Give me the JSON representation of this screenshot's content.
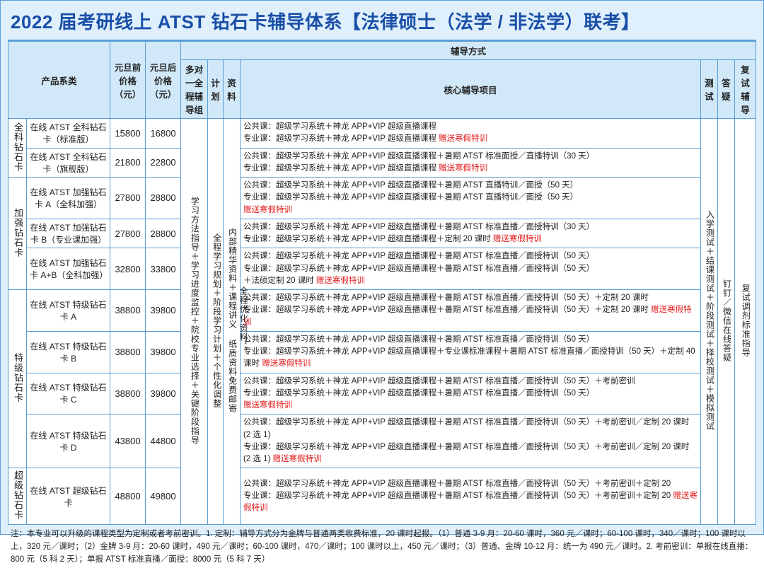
{
  "title": "2022 届考研线上 ATST 钻石卡辅导体系【法律硕士（法学 / 非法学）联考】",
  "headers": {
    "product": "产品系类",
    "price_before": "元旦前价格（元）",
    "price_after": "元旦后价格（元）",
    "method_group": "辅导方式",
    "m1": "多对一全程辅导组",
    "m2": "计划",
    "m3": "资料",
    "core": "核心辅导项目",
    "m4": "测试",
    "m5": "答疑",
    "m6": "复试辅导"
  },
  "cats": {
    "c1": "全科钻石卡",
    "c2": "加强钻石卡",
    "c3": "特级钻石卡",
    "c4": "超级钻石卡"
  },
  "vcol": {
    "m1": "学习方法指导＋学习进度监控＋院校专业选择＋关键阶段指导",
    "m2": "全程学习规划＋阶段学习计划＋个性化调整",
    "m3a": "全程优化资料：",
    "m3b": "内部精华资料＋课程讲义  纸质资料免费邮寄",
    "m4": "入学测试＋结课测试＋阶段测试＋择校测试＋模拟测试",
    "m5": "钉钉／微信在线答疑",
    "m6": "复试调剂标准指导"
  },
  "rows": [
    {
      "name": "在线 ATST 全科钻石卡（标准版）",
      "p1": "15800",
      "p2": "16800",
      "core": "公共课：超级学习系统＋神龙 APP+VIP 超级直播课程\n专业课：超级学习系统＋神龙 APP+VIP 超级直播课程 ",
      "bonus": "赠送寒假特训"
    },
    {
      "name": "在线 ATST 全科钻石卡（旗舰版）",
      "p1": "21800",
      "p2": "22800",
      "core": "公共课：超级学习系统＋神龙 APP+VIP 超级直播课程＋暑期 ATST 标准面授／直播特训（30 天）\n专业课：超级学习系统＋神龙 APP+VIP 超级直播课程 ",
      "bonus": "赠送寒假特训"
    },
    {
      "name": "在线 ATST 加强钻石卡 A（全科加强）",
      "p1": "27800",
      "p2": "28800",
      "core": "公共课：超级学习系统＋神龙 APP+VIP 超级直播课程＋暑期 ATST 直播特训／面授（50 天）\n专业课：超级学习系统＋神龙 APP+VIP 超级直播课程＋暑期 ATST 直播特训／面授（50 天）\n",
      "bonus": "赠送寒假特训"
    },
    {
      "name": "在线 ATST 加强钻石卡 B（专业课加强）",
      "p1": "27800",
      "p2": "28800",
      "core": "公共课：超级学习系统＋神龙 APP+VIP 超级直播课程＋暑期 ATST 标准直播／面授特训（30 天）\n专业课：超级学习系统＋神龙 APP+VIP 超级直播课程＋定制 20 课时 ",
      "bonus": "赠送寒假特训"
    },
    {
      "name": "在线 ATST 加强钻石卡 A+B（全科加强）",
      "p1": "32800",
      "p2": "33800",
      "core": "公共课：超级学习系统＋神龙 APP+VIP 超级直播课程＋暑期 ATST 标准直播／面授特训（50 天）\n专业课：超级学习系统＋神龙 APP+VIP 超级直播课程＋暑期 ATST 标准直播／面授特训（50 天）\n＋法硕定制 20 课时 ",
      "bonus": "赠送寒假特训"
    },
    {
      "name": "在线 ATST 特级钻石卡 A",
      "p1": "38800",
      "p2": "39800",
      "core": "公共课：超级学习系统＋神龙 APP+VIP 超级直播课程＋暑期 ATST 标准直播／面授特训（50 天）＋定制 20 课时\n专业课：超级学习系统＋神龙 APP+VIP 超级直播课程＋暑期 ATST 标准直播／面授特训（50 天）＋定制 20 课时 ",
      "bonus": "赠送寒假特训"
    },
    {
      "name": "在线 ATST 特级钻石卡 B",
      "p1": "38800",
      "p2": "39800",
      "core": "公共课：超级学习系统＋神龙 APP+VIP 超级直播课程＋暑期 ATST 标准直播／面授特训（50 天）\n专业课：超级学习系统＋神龙 APP+VIP 超级直播课程＋专业课标准课程＋暑期 ATST 标准直播／面授特训（50 天）＋定制 40 课时 ",
      "bonus": "赠送寒假特训"
    },
    {
      "name": "在线 ATST 特级钻石卡 C",
      "p1": "38800",
      "p2": "39800",
      "core": "公共课：超级学习系统＋神龙 APP+VIP 超级直播课程＋暑期 ATST 标准直播／面授特训（50 天）＋考前密训\n专业课：超级学习系统＋神龙 APP+VIP 超级直播课程＋暑期 ATST 标准直播／面授特训（50 天）\n",
      "bonus": "赠送寒假特训"
    },
    {
      "name": "在线 ATST 特级钻石卡 D",
      "p1": "43800",
      "p2": "44800",
      "core": "公共课：超级学习系统＋神龙 APP+VIP 超级直播课程＋暑期 ATST 标准直播／面授特训（50 天）＋考前密训／定制 20 课时 (2 选 1)\n专业课：超级学习系统＋神龙 APP+VIP 超级直播课程＋暑期 ATST 标准直播／面授特训（50 天）＋考前密训／定制 20 课时 (2 选 1) ",
      "bonus": "赠送寒假特训"
    },
    {
      "name": "在线 ATST 超级钻石卡",
      "p1": "48800",
      "p2": "49800",
      "core": "公共课：超级学习系统＋神龙 APP+VIP 超级直播课程＋暑期 ATST 标准直播／面授特训（50 天）＋考前密训＋定制 20\n专业课：超级学习系统＋神龙 APP+VIP 超级直播课程＋暑期 ATST 标准直播／面授特训（50 天）＋考前密训＋定制 20 ",
      "bonus": "赠送寒假特训"
    }
  ],
  "footnote": "注：本专业可以升级的课程类型为定制或者考前密训。1. 定制：辅导方式分为金牌与普通两类收费标准，20 课时起报。（1）普通 3-9 月：20-60 课时，360 元／课时；60-100 课时，340／课时；100 课时以上，320 元／课时；（2）金牌 3-9 月：20-60 课时，490 元／课时；60-100 课时，470／课时；100 课时以上，450 元／课时；（3）普通、金牌 10-12 月：统一为 490 元／课时。2. 考前密训：单报在线直播：800 元（5 科 2 天）；单报 ATST 标准直播／面授：8000 元（5 科 7 天）"
}
